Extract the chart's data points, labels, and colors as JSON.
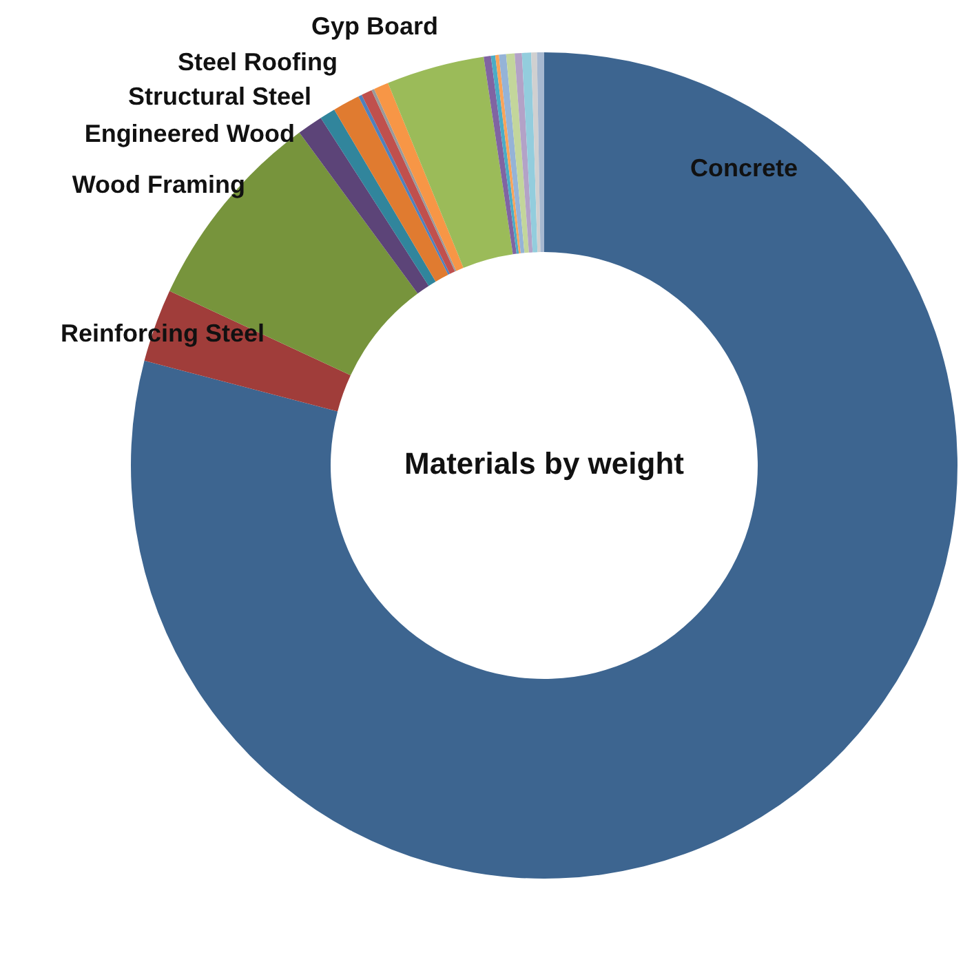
{
  "chart_data": {
    "type": "donut",
    "title": "Materials by weight",
    "categories": [
      "Concrete",
      "Reinforcing Steel",
      "Wood Framing",
      "Engineered Wood",
      "Structural Steel",
      "Steel Roofing",
      null,
      null,
      null,
      null,
      "Gyp Board",
      null,
      null,
      null,
      null,
      null,
      null,
      null,
      null,
      null
    ],
    "values": [
      79.08,
      2.86,
      7.97,
      1.0,
      0.61,
      1.06,
      0.14,
      0.42,
      0.11,
      0.58,
      3.83,
      0.28,
      0.17,
      0.14,
      0.28,
      0.33,
      0.28,
      0.36,
      0.22,
      0.28
    ],
    "colors": [
      "#3d6590",
      "#a03d3a",
      "#77943c",
      "#5c4478",
      "#31859c",
      "#e07b30",
      "#4f81bd",
      "#c0504d",
      "#9a9a9a",
      "#f79646",
      "#9bbb59",
      "#8064a2",
      "#4bacc6",
      "#f9a45a",
      "#95b3d7",
      "#c3d69b",
      "#b3a2c7",
      "#93cddd",
      "#d0d0d0",
      "#a6b8d0"
    ]
  }
}
